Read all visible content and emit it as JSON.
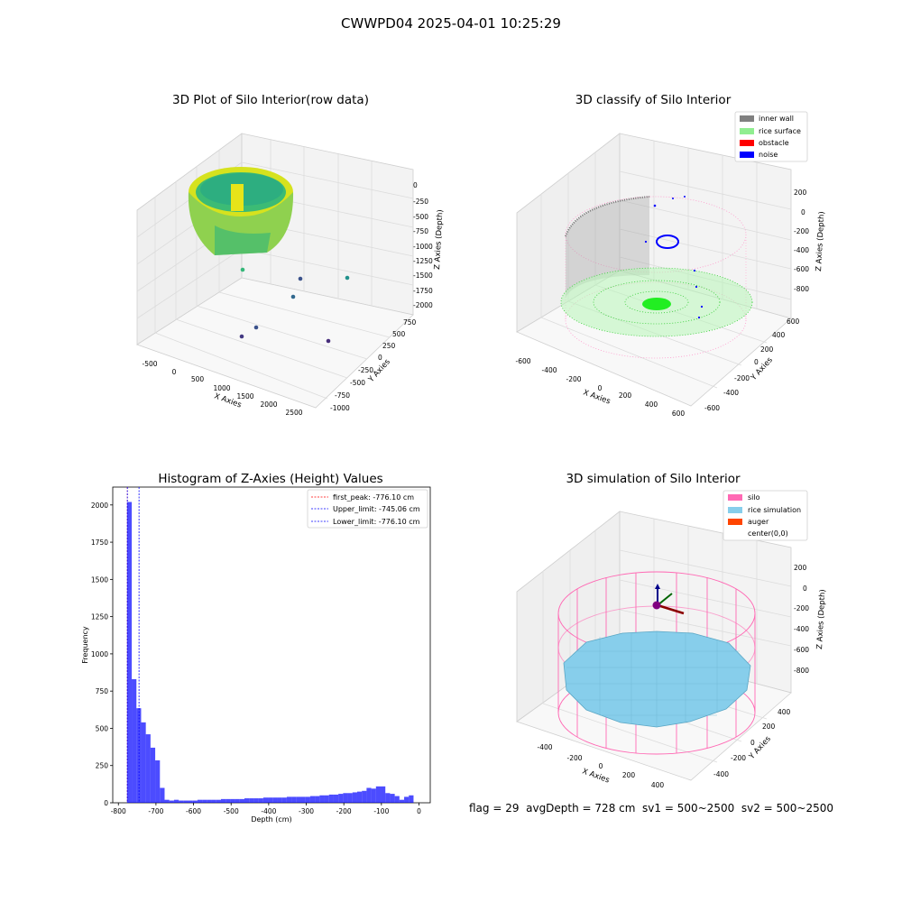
{
  "suptitle": "CWWPD04 2025-04-01 10:25:29",
  "footer": "flag = 29  avgDepth = 728 cm  sv1 = 500~2500  sv2 = 500~2500",
  "panels": {
    "raw": {
      "title": "3D Plot of Silo Interior(row data)",
      "xlabel": "X Axies",
      "ylabel": "Y Axies",
      "zlabel": "Z Axies (Depth)",
      "xticks": [
        "-500",
        "0",
        "500",
        "1000",
        "1500",
        "2000",
        "2500"
      ],
      "yticks": [
        "-1000",
        "-750",
        "-500",
        "-250",
        "0",
        "250",
        "500",
        "750"
      ],
      "zticks": [
        "0",
        "-250",
        "-500",
        "-750",
        "-1000",
        "-1250",
        "-1500",
        "-1750",
        "-2000"
      ]
    },
    "classify": {
      "title": "3D classify of Silo Interior",
      "xlabel": "X Axies",
      "ylabel": "Y Axies",
      "zlabel": "Z Axies (Depth)",
      "xticks": [
        "-600",
        "-400",
        "-200",
        "0",
        "200",
        "400",
        "600"
      ],
      "yticks": [
        "-600",
        "-400",
        "-200",
        "0",
        "200",
        "400",
        "600"
      ],
      "zticks": [
        "200",
        "0",
        "-200",
        "-400",
        "-600",
        "-800"
      ],
      "legend": [
        {
          "label": "inner wall",
          "color": "#808080"
        },
        {
          "label": "rice surface",
          "color": "#90ee90"
        },
        {
          "label": "obstacle",
          "color": "#ff0000"
        },
        {
          "label": "noise",
          "color": "#0000ff"
        }
      ]
    },
    "simulation": {
      "title": "3D simulation of Silo Interior",
      "xlabel": "X Axies",
      "ylabel": "Y Axies",
      "zlabel": "Z Axies (Depth)",
      "xticks": [
        "-400",
        "-200",
        "0",
        "200",
        "400"
      ],
      "yticks": [
        "-400",
        "-200",
        "0",
        "200",
        "400"
      ],
      "zticks": [
        "200",
        "0",
        "-200",
        "-400",
        "-600",
        "-800"
      ],
      "legend": [
        {
          "label": "silo",
          "color": "#ff69b4"
        },
        {
          "label": "rice simulation",
          "color": "#87ceeb"
        },
        {
          "label": "auger",
          "color": "#ff4500"
        },
        {
          "label": "center(0,0)",
          "color": "#ffffff"
        }
      ]
    }
  },
  "chart_data": {
    "type": "bar",
    "title": "Histogram of Z-Axies (Height) Values",
    "xlabel": "Depth (cm)",
    "ylabel": "Frequency",
    "xlim": [
      -815,
      30
    ],
    "ylim": [
      0,
      2120
    ],
    "xticks": [
      -800,
      -700,
      -600,
      -500,
      -400,
      -300,
      -200,
      -100,
      0
    ],
    "yticks": [
      0,
      250,
      500,
      750,
      1000,
      1250,
      1500,
      1750,
      2000
    ],
    "bar_color": "#0000ff",
    "bin_width": 12.5,
    "bin_starts": [
      -777,
      -764.5,
      -752,
      -739.5,
      -727,
      -714.5,
      -702,
      -689.5,
      -677,
      -664.5,
      -652,
      -639.5,
      -627,
      -614.5,
      -602,
      -589.5,
      -577,
      -564.5,
      -552,
      -539.5,
      -527,
      -514.5,
      -502,
      -489.5,
      -477,
      -464.5,
      -452,
      -439.5,
      -427,
      -414.5,
      -402,
      -389.5,
      -377,
      -364.5,
      -352,
      -339.5,
      -327,
      -314.5,
      -302,
      -289.5,
      -277,
      -264.5,
      -252,
      -239.5,
      -227,
      -214.5,
      -202,
      -189.5,
      -177,
      -164.5,
      -152,
      -139.5,
      -127,
      -114.5,
      -102,
      -89.5,
      -77,
      -64.5,
      -52,
      -39.5,
      -27,
      -14.5,
      -2
    ],
    "values": [
      2020,
      830,
      635,
      540,
      460,
      370,
      285,
      100,
      20,
      15,
      20,
      15,
      15,
      15,
      15,
      20,
      20,
      20,
      20,
      20,
      25,
      25,
      25,
      25,
      25,
      30,
      30,
      30,
      30,
      35,
      35,
      35,
      35,
      35,
      40,
      40,
      40,
      40,
      40,
      45,
      45,
      50,
      50,
      55,
      55,
      60,
      65,
      65,
      70,
      75,
      80,
      100,
      95,
      110,
      110,
      65,
      60,
      45,
      20,
      40,
      50,
      0,
      0
    ],
    "vlines": [
      {
        "label": "first_peak: -776.10 cm",
        "x": -776.1,
        "color": "#ff0000"
      },
      {
        "label": "Upper_limit: -745.06 cm",
        "x": -745.06,
        "color": "#0000ff"
      },
      {
        "label": "Lower_limit: -776.10 cm",
        "x": -776.1,
        "color": "#0000ff"
      }
    ]
  }
}
